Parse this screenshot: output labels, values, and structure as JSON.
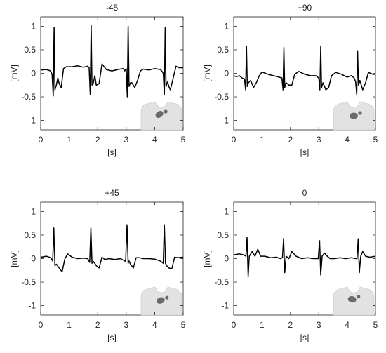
{
  "chart_data": [
    {
      "type": "line",
      "title": "-45",
      "xlabel": "[s]",
      "ylabel": "[mV]",
      "xlim": [
        0,
        5
      ],
      "ylim": [
        -1.2,
        1.2
      ],
      "xticks": [
        "0",
        "1",
        "2",
        "3",
        "4",
        "5"
      ],
      "yticks": [
        "-1",
        "-0.5",
        "0",
        "0.5",
        "1"
      ],
      "grid": false,
      "series": [
        {
          "color": "#000000",
          "x": [
            0,
            0.2,
            0.35,
            0.4,
            0.44,
            0.47,
            0.5,
            0.55,
            0.6,
            0.65,
            0.72,
            0.8,
            0.9,
            1.1,
            1.3,
            1.5,
            1.65,
            1.7,
            1.74,
            1.77,
            1.8,
            1.85,
            1.9,
            1.95,
            2.05,
            2.15,
            2.3,
            2.5,
            2.7,
            2.9,
            2.95,
            3.0,
            3.04,
            3.07,
            3.1,
            3.15,
            3.2,
            3.3,
            3.4,
            3.5,
            3.6,
            3.8,
            4.0,
            4.2,
            4.25,
            4.3,
            4.34,
            4.37,
            4.4,
            4.45,
            4.5,
            4.55,
            4.65,
            4.75,
            4.85,
            5.0
          ],
          "y": [
            0.07,
            0.08,
            0.05,
            -0.02,
            -0.48,
            0.98,
            -0.35,
            -0.25,
            -0.1,
            -0.22,
            -0.3,
            0.1,
            0.14,
            0.14,
            0.16,
            0.13,
            0.15,
            0.12,
            -0.45,
            1.02,
            -0.25,
            -0.2,
            -0.05,
            -0.25,
            -0.22,
            0.2,
            0.08,
            0.05,
            0.08,
            0.1,
            0.05,
            0.1,
            -0.5,
            1.0,
            -0.28,
            -0.2,
            -0.2,
            -0.3,
            -0.15,
            0.05,
            0.09,
            0.07,
            0.1,
            0.08,
            0.05,
            0.0,
            -0.45,
            0.98,
            -0.28,
            -0.18,
            -0.28,
            -0.35,
            -0.1,
            0.15,
            0.12,
            0.12
          ]
        }
      ]
    },
    {
      "type": "line",
      "title": "+90",
      "xlabel": "[s]",
      "ylabel": "[mV]",
      "xlim": [
        0,
        5
      ],
      "ylim": [
        -1.2,
        1.2
      ],
      "xticks": [
        "0",
        "1",
        "2",
        "3",
        "4",
        "5"
      ],
      "yticks": [
        "-1",
        "-0.5",
        "0",
        "0.5",
        "1"
      ],
      "grid": false,
      "series": [
        {
          "color": "#000000",
          "x": [
            0,
            0.1,
            0.2,
            0.3,
            0.38,
            0.42,
            0.45,
            0.48,
            0.52,
            0.6,
            0.7,
            0.8,
            0.9,
            1.0,
            1.2,
            1.4,
            1.6,
            1.7,
            1.74,
            1.77,
            1.8,
            1.85,
            1.95,
            2.05,
            2.15,
            2.3,
            2.5,
            2.7,
            2.9,
            3.0,
            3.04,
            3.07,
            3.1,
            3.15,
            3.25,
            3.35,
            3.45,
            3.6,
            3.8,
            4.0,
            4.15,
            4.25,
            4.3,
            4.34,
            4.37,
            4.4,
            4.45,
            4.55,
            4.65,
            4.75,
            4.9,
            5.0
          ],
          "y": [
            -0.05,
            -0.07,
            -0.05,
            -0.1,
            -0.12,
            -0.35,
            0.58,
            -0.28,
            -0.2,
            -0.15,
            -0.3,
            -0.2,
            -0.05,
            0.03,
            -0.02,
            -0.05,
            -0.08,
            -0.1,
            -0.35,
            0.55,
            -0.3,
            -0.2,
            -0.25,
            -0.25,
            -0.02,
            0.04,
            -0.02,
            -0.05,
            -0.05,
            -0.1,
            -0.35,
            0.58,
            -0.3,
            -0.2,
            -0.35,
            -0.3,
            -0.05,
            0.02,
            -0.02,
            -0.08,
            -0.05,
            -0.1,
            -0.18,
            -0.45,
            0.48,
            -0.25,
            -0.15,
            -0.35,
            -0.2,
            0.02,
            -0.02,
            -0.02
          ]
        }
      ]
    },
    {
      "type": "line",
      "title": "+45",
      "xlabel": "[s]",
      "ylabel": "[mV]",
      "xlim": [
        0,
        5
      ],
      "ylim": [
        -1.2,
        1.2
      ],
      "xticks": [
        "0",
        "1",
        "2",
        "3",
        "4",
        "5"
      ],
      "yticks": [
        "-1",
        "-0.5",
        "0",
        "0.5",
        "1"
      ],
      "grid": false,
      "series": [
        {
          "color": "#000000",
          "x": [
            0,
            0.2,
            0.35,
            0.42,
            0.46,
            0.5,
            0.55,
            0.65,
            0.75,
            0.85,
            0.95,
            1.1,
            1.3,
            1.5,
            1.65,
            1.72,
            1.76,
            1.8,
            1.85,
            1.95,
            2.05,
            2.15,
            2.25,
            2.4,
            2.6,
            2.8,
            2.98,
            3.03,
            3.07,
            3.1,
            3.15,
            3.25,
            3.35,
            3.45,
            3.6,
            3.8,
            4.0,
            4.2,
            4.3,
            4.34,
            4.38,
            4.42,
            4.5,
            4.6,
            4.7,
            4.8,
            5.0
          ],
          "y": [
            0.03,
            0.05,
            0.02,
            -0.05,
            0.65,
            -0.15,
            -0.12,
            -0.2,
            -0.28,
            0.0,
            0.1,
            0.03,
            0.0,
            0.01,
            0.0,
            -0.08,
            0.65,
            -0.1,
            -0.06,
            -0.15,
            -0.2,
            0.03,
            -0.02,
            0.0,
            -0.02,
            0.0,
            -0.06,
            0.72,
            -0.1,
            -0.05,
            -0.12,
            -0.2,
            0.02,
            0.02,
            0.0,
            0.0,
            -0.01,
            -0.05,
            -0.1,
            0.72,
            -0.1,
            -0.15,
            -0.2,
            -0.22,
            0.03,
            0.02,
            0.03
          ]
        }
      ]
    },
    {
      "type": "line",
      "title": "0",
      "xlabel": "[s]",
      "ylabel": "[mV]",
      "xlim": [
        0,
        5
      ],
      "ylim": [
        -1.2,
        1.2
      ],
      "xticks": [
        "0",
        "1",
        "2",
        "3",
        "4",
        "5"
      ],
      "yticks": [
        "-1",
        "-0.5",
        "0",
        "0.5",
        "1"
      ],
      "grid": false,
      "series": [
        {
          "color": "#000000",
          "x": [
            0,
            0.2,
            0.35,
            0.43,
            0.47,
            0.51,
            0.55,
            0.65,
            0.75,
            0.85,
            0.95,
            1.1,
            1.3,
            1.5,
            1.65,
            1.72,
            1.76,
            1.8,
            1.85,
            1.95,
            2.05,
            2.2,
            2.4,
            2.6,
            2.8,
            2.98,
            3.03,
            3.07,
            3.12,
            3.2,
            3.3,
            3.4,
            3.55,
            3.75,
            3.95,
            4.15,
            4.3,
            4.35,
            4.39,
            4.43,
            4.48,
            4.55,
            4.65,
            4.8,
            5.0
          ],
          "y": [
            0.08,
            0.1,
            0.08,
            0.05,
            0.45,
            -0.38,
            0.05,
            0.15,
            0.05,
            0.2,
            0.05,
            0.05,
            0.02,
            0.03,
            0.0,
            0.02,
            0.43,
            -0.3,
            0.05,
            0.0,
            0.15,
            0.05,
            0.0,
            0.02,
            0.0,
            0.0,
            0.38,
            -0.35,
            0.05,
            0.12,
            0.05,
            0.0,
            0.0,
            0.02,
            0.0,
            0.02,
            0.0,
            0.0,
            0.42,
            -0.3,
            0.05,
            0.15,
            0.05,
            0.03,
            0.05
          ]
        }
      ]
    }
  ],
  "annotation_icon": "torso-heart-icon",
  "colors": {
    "trace": "#000000",
    "axis": "#222222",
    "torso": "#e2e2e2",
    "heart": "#6a6a6a"
  }
}
